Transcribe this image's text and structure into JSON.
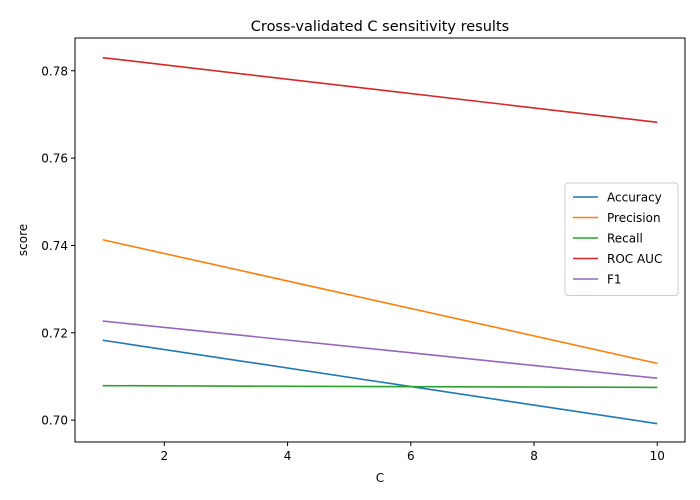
{
  "chart_data": {
    "type": "line",
    "title": "Cross-validated C sensitivity results",
    "xlabel": "C",
    "ylabel": "score",
    "x": [
      1,
      10
    ],
    "xlim": [
      0.55,
      10.45
    ],
    "ylim": [
      0.695,
      0.7875
    ],
    "xticks": [
      2,
      4,
      6,
      8,
      10
    ],
    "xtick_labels": [
      "2",
      "4",
      "6",
      "8",
      "10"
    ],
    "yticks": [
      0.7,
      0.72,
      0.74,
      0.76,
      0.78
    ],
    "ytick_labels": [
      "0.70",
      "0.72",
      "0.74",
      "0.76",
      "0.78"
    ],
    "grid": false,
    "legend_position": "center-right",
    "series": [
      {
        "name": "Accuracy",
        "color": "#1f77b4",
        "values": [
          0.7183,
          0.6992
        ]
      },
      {
        "name": "Precision",
        "color": "#ff7f0e",
        "values": [
          0.7413,
          0.713
        ]
      },
      {
        "name": "Recall",
        "color": "#2ca02c",
        "values": [
          0.7079,
          0.7075
        ]
      },
      {
        "name": "ROC AUC",
        "color": "#d62728",
        "values": [
          0.783,
          0.7682
        ]
      },
      {
        "name": "F1",
        "color": "#9467bd",
        "values": [
          0.7227,
          0.7096
        ]
      }
    ]
  }
}
